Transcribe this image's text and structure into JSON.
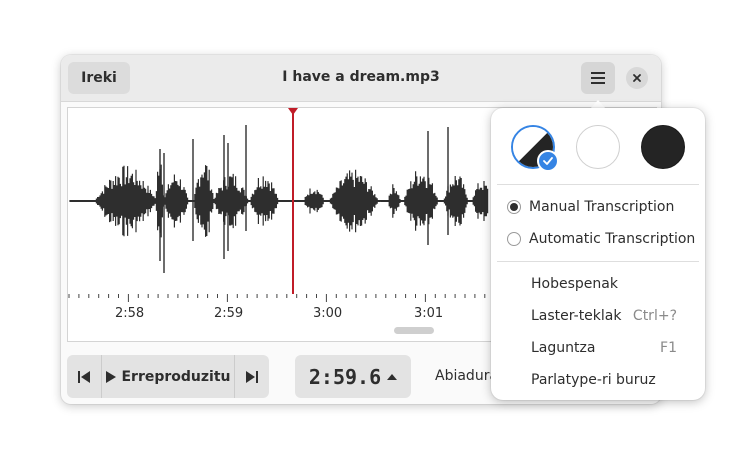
{
  "window": {
    "title": "I have a dream.mp3",
    "open_label": "Ireki"
  },
  "icons": {
    "menu": "hamburger-menu-icon",
    "close": "close-icon",
    "previous": "skip-backward-icon",
    "play": "play-icon",
    "next": "skip-forward-icon",
    "spin_up": "chevron-up-icon",
    "check": "checkmark-icon"
  },
  "waveform": {
    "tick_labels": [
      "2:58",
      "2:59",
      "3:00",
      "3:01"
    ],
    "cursor_color": "#c01c28"
  },
  "controls": {
    "play_label": "Erreproduzitu",
    "time": "2:59.6",
    "speed_label": "Abiadura"
  },
  "menu": {
    "styles": [
      {
        "name": "follow-system",
        "selected": true
      },
      {
        "name": "light",
        "selected": false
      },
      {
        "name": "dark",
        "selected": false
      }
    ],
    "radio_items": [
      {
        "label": "Manual Transcription",
        "selected": true
      },
      {
        "label": "Automatic Transcription",
        "selected": false
      }
    ],
    "items": [
      {
        "label": "Hobespenak",
        "accel": ""
      },
      {
        "label": "Laster-teklak",
        "accel": "Ctrl+?"
      },
      {
        "label": "Laguntza",
        "accel": "F1"
      },
      {
        "label": "Parlatype-ri buruz",
        "accel": ""
      }
    ]
  },
  "colors": {
    "accent": "#3584e4",
    "cursor": "#c01c28",
    "waveform": "#2e2e2e"
  }
}
